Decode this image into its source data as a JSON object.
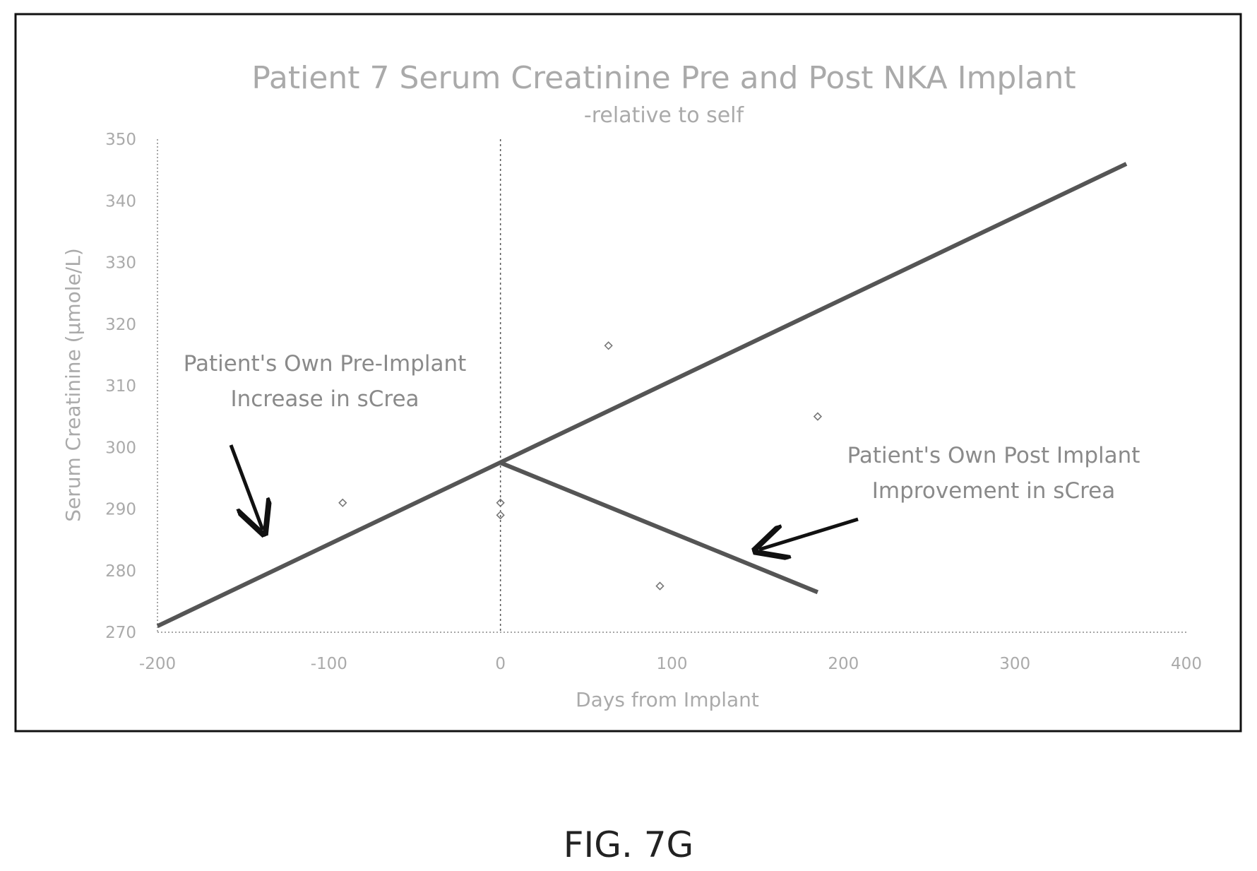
{
  "chart_data": {
    "type": "scatter",
    "title": "Patient 7 Serum Creatinine Pre and Post NKA Implant",
    "subtitle": "-relative to self",
    "xlabel": "Days from Implant",
    "ylabel": "Serum Creatinine (µmole/L)",
    "xlim": [
      -200,
      400
    ],
    "ylim": [
      270,
      350
    ],
    "xticks": [
      -200,
      -100,
      0,
      100,
      200,
      300,
      400
    ],
    "yticks": [
      270,
      280,
      290,
      300,
      310,
      320,
      330,
      340,
      350
    ],
    "grid": false,
    "legend": "none",
    "series": [
      {
        "points": [
          {
            "x": -92,
            "y": 291
          },
          {
            "x": 0,
            "y": 291
          },
          {
            "x": 0,
            "y": 289
          },
          {
            "x": 63,
            "y": 316.5
          },
          {
            "x": 93,
            "y": 277.5
          },
          {
            "x": 185,
            "y": 305
          }
        ]
      }
    ],
    "trend_lines": [
      {
        "from": {
          "x": -200,
          "y": 271
        },
        "to": {
          "x": 365,
          "y": 346
        }
      },
      {
        "from": {
          "x": 0,
          "y": 297.5
        },
        "to": {
          "x": 185,
          "y": 276.5
        }
      }
    ],
    "reference_line": {
      "x": 0
    },
    "annotations": [
      {
        "lines": [
          "Patient's Own Pre-Implant",
          "Increase in sCrea"
        ]
      },
      {
        "lines": [
          "Patient's Own Post Implant",
          "Improvement in sCrea"
        ]
      }
    ],
    "colors": {
      "trend": "#555555",
      "marker": "#777777",
      "frame": "#111111",
      "text": "#aaaaaa",
      "annotation": "#8a8a8a",
      "arrow": "#111111"
    }
  },
  "caption": "FIG. 7G"
}
